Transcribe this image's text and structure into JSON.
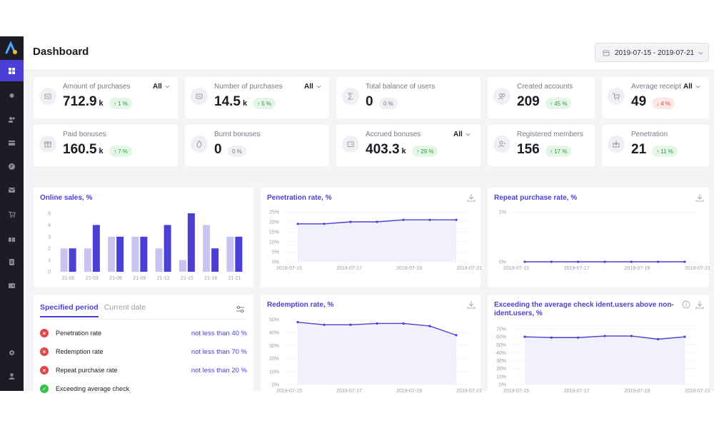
{
  "header": {
    "title": "Dashboard",
    "date_range": "2019-07-15 - 2019-07-21"
  },
  "sidebar": {
    "items": [
      "layout-grid-icon",
      "location-icon",
      "users-icon",
      "card-icon",
      "compass-icon",
      "mail-icon",
      "cart-icon",
      "gift-icon",
      "document-icon",
      "wallet-icon"
    ],
    "bottom": [
      "settings-icon",
      "user-icon"
    ]
  },
  "kpis": [
    {
      "label": "Amount of purchases",
      "value": "712.9",
      "unit": "k",
      "badge": "↑ 1 %",
      "trend": "up",
      "select": "All"
    },
    {
      "label": "Number of purchases",
      "value": "14.5",
      "unit": "k",
      "badge": "↑ 5 %",
      "trend": "up",
      "select": "All"
    },
    {
      "label": "Total balance of users",
      "value": "0",
      "unit": "",
      "badge": "0 %",
      "trend": "zero",
      "select": ""
    },
    {
      "label": "Created accounts",
      "value": "209",
      "unit": "",
      "badge": "↑ 45 %",
      "trend": "up",
      "select": ""
    },
    {
      "label": "Average receipt",
      "value": "49",
      "unit": "",
      "badge": "↓ 4 %",
      "trend": "down",
      "select": "All"
    },
    {
      "label": "Paid bonuses",
      "value": "160.5",
      "unit": "k",
      "badge": "↑ 7 %",
      "trend": "up",
      "select": ""
    },
    {
      "label": "Burnt bonuses",
      "value": "0",
      "unit": "",
      "badge": "0 %",
      "trend": "zero",
      "select": ""
    },
    {
      "label": "Accrued bonuses",
      "value": "403.3",
      "unit": "k",
      "badge": "↑ 29 %",
      "trend": "up",
      "select": "All"
    },
    {
      "label": "Registered members",
      "value": "156",
      "unit": "",
      "badge": "↑ 17 %",
      "trend": "up",
      "select": ""
    },
    {
      "label": "Penetration",
      "value": "21",
      "unit": "",
      "badge": "↑ 11 %",
      "trend": "up",
      "select": ""
    }
  ],
  "conditions": {
    "tabs": [
      "Specified period",
      "Current date"
    ],
    "rows": [
      {
        "name": "Penetration rate",
        "value": "not less than 40 %",
        "status": "fail"
      },
      {
        "name": "Redemption rate",
        "value": "not less than 70 %",
        "status": "fail"
      },
      {
        "name": "Repeat purchase rate",
        "value": "not less than 20 %",
        "status": "fail"
      },
      {
        "name": "Exceeding average check",
        "value": "",
        "status": "ok"
      }
    ]
  },
  "colors": {
    "accent": "#4b3fd6",
    "bar_light": "#c8c4f2",
    "bar_dark": "#4b3fd6",
    "ok": "#35c24a",
    "fail": "#e04848"
  },
  "chart_data": [
    {
      "type": "bar",
      "title": "Online sales, %",
      "categories": [
        "21-00",
        "21-03",
        "21-06",
        "21-09",
        "21-12",
        "21-15",
        "21-18",
        "21-21"
      ],
      "ylim": [
        0,
        5
      ],
      "yticks": [
        0,
        1,
        2,
        3,
        4,
        5
      ],
      "series": [
        {
          "values": [
            2,
            2,
            3,
            3,
            2,
            1,
            4,
            3
          ]
        },
        {
          "values": [
            2,
            4,
            3,
            3,
            4,
            5,
            2,
            3
          ]
        }
      ]
    },
    {
      "type": "line",
      "title": "Penetration rate, %",
      "x": [
        "2019-07-15",
        "2019-07-16",
        "2019-07-17",
        "2019-07-18",
        "2019-07-19",
        "2019-07-20",
        "2019-07-21"
      ],
      "ylim": [
        0,
        25
      ],
      "yticks": [
        "0%",
        "5%",
        "10%",
        "15%",
        "20%",
        "25%"
      ],
      "xticks": [
        "2019-07-15",
        "2019-07-17",
        "2019-07-19",
        "2019-07-21"
      ],
      "series": [
        {
          "values": [
            19,
            19,
            20,
            20,
            21,
            21,
            21
          ]
        }
      ]
    },
    {
      "type": "line",
      "title": "Repeat purchase rate, %",
      "x": [
        "2019-07-15",
        "2019-07-16",
        "2019-07-17",
        "2019-07-18",
        "2019-07-19",
        "2019-07-20",
        "2019-07-21"
      ],
      "ylim": [
        0,
        1
      ],
      "yticks": [
        "0%",
        "1%"
      ],
      "xticks": [
        "2019-07-15",
        "2019-07-17",
        "2019-07-19",
        "2019-07-21"
      ],
      "series": [
        {
          "values": [
            0,
            0,
            0,
            0,
            0,
            0,
            0
          ]
        }
      ]
    },
    {
      "type": "line",
      "title": "Redemption rate, %",
      "x": [
        "2019-07-15",
        "2019-07-16",
        "2019-07-17",
        "2019-07-18",
        "2019-07-19",
        "2019-07-20",
        "2019-07-21"
      ],
      "ylim": [
        0,
        50
      ],
      "yticks": [
        "0%",
        "10%",
        "20%",
        "30%",
        "40%",
        "50%"
      ],
      "xticks": [
        "2019-07-15",
        "2019-07-17",
        "2019-07-19",
        "2019-07-21"
      ],
      "series": [
        {
          "values": [
            48,
            46,
            46,
            47,
            47,
            45,
            38
          ]
        }
      ]
    },
    {
      "type": "line",
      "title": "Exceeding the average check ident.users above non-ident.users, %",
      "x": [
        "2019-07-15",
        "2019-07-16",
        "2019-07-17",
        "2019-07-18",
        "2019-07-19",
        "2019-07-20",
        "2019-07-21"
      ],
      "ylim": [
        0,
        70
      ],
      "yticks": [
        "0%",
        "10%",
        "20%",
        "30%",
        "40%",
        "50%",
        "60%",
        "70%"
      ],
      "xticks": [
        "2019-07-15",
        "2019-07-17",
        "2019-07-19",
        "2019-07-21"
      ],
      "series": [
        {
          "values": [
            60,
            59,
            59,
            61,
            61,
            57,
            60
          ]
        }
      ]
    }
  ]
}
